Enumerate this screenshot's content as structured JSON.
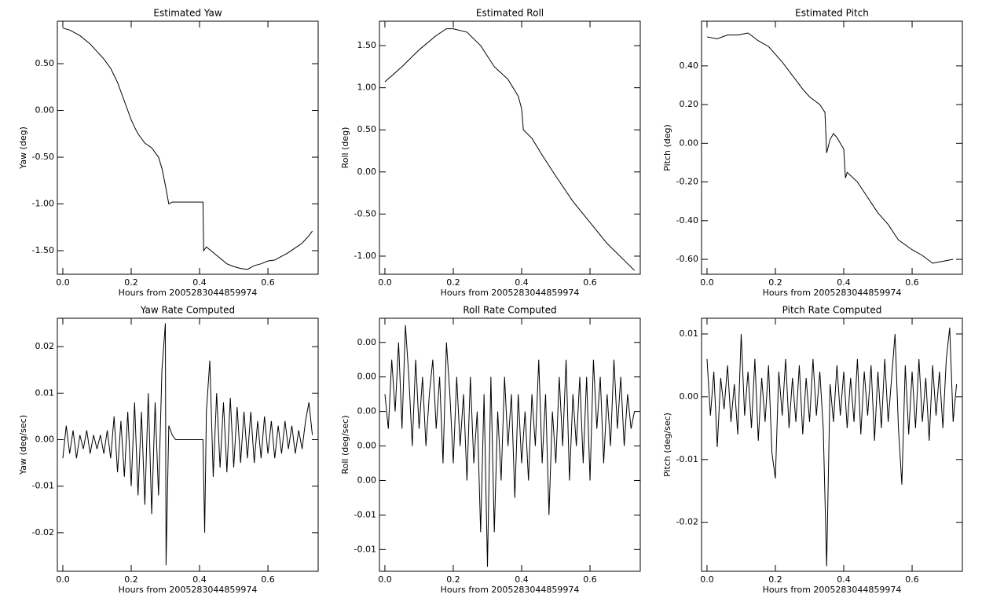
{
  "chart_data": [
    {
      "type": "line",
      "title": "Estimated Yaw",
      "xlabel": "Hours from 2005283044859974",
      "ylabel": "Yaw (deg)",
      "color": "#000000",
      "xlim": [
        -0.016,
        0.747
      ],
      "ylim": [
        -1.752,
        0.954
      ],
      "xticks": [
        {
          "value": 0,
          "label": "0.0"
        },
        0.2,
        0.4,
        0.6
      ],
      "yticks": [
        {
          "value": 0.5,
          "label": "0.50"
        },
        {
          "value": 0,
          "label": "0.00"
        },
        {
          "value": -0.5,
          "label": "-0.50"
        },
        {
          "value": -1,
          "label": "-1.00"
        },
        {
          "value": -1.5,
          "label": "-1.50"
        }
      ],
      "x": [
        0,
        0.02,
        0.05,
        0.08,
        0.1,
        0.12,
        0.14,
        0.16,
        0.18,
        0.2,
        0.21,
        0.22,
        0.24,
        0.26,
        0.28,
        0.29,
        0.3,
        0.31,
        0.32,
        0.41,
        0.412,
        0.42,
        0.44,
        0.46,
        0.48,
        0.5,
        0.52,
        0.54,
        0.56,
        0.58,
        0.6,
        0.62,
        0.64,
        0.66,
        0.68,
        0.7,
        0.72,
        0.73
      ],
      "values": [
        0.88,
        0.86,
        0.8,
        0.71,
        0.63,
        0.55,
        0.45,
        0.3,
        0.1,
        -0.1,
        -0.18,
        -0.25,
        -0.35,
        -0.4,
        -0.5,
        -0.62,
        -0.8,
        -1.0,
        -0.98,
        -0.98,
        -1.5,
        -1.46,
        -1.52,
        -1.58,
        -1.64,
        -1.67,
        -1.69,
        -1.7,
        -1.66,
        -1.64,
        -1.61,
        -1.6,
        -1.56,
        -1.52,
        -1.47,
        -1.42,
        -1.34,
        -1.29
      ]
    },
    {
      "type": "line",
      "title": "Estimated Roll",
      "xlabel": "Hours from 2005283044859974",
      "ylabel": "Roll (deg)",
      "color": "#000000",
      "xlim": [
        -0.016,
        0.747
      ],
      "ylim": [
        -1.215,
        1.79
      ],
      "xticks": [
        {
          "value": 0,
          "label": "0.0"
        },
        0.2,
        0.4,
        0.6
      ],
      "yticks": [
        {
          "value": 1.5,
          "label": "1.50"
        },
        {
          "value": 1,
          "label": "1.00"
        },
        {
          "value": 0.5,
          "label": "0.50"
        },
        {
          "value": 0,
          "label": "0.00"
        },
        {
          "value": -0.5,
          "label": "-0.50"
        },
        {
          "value": -1,
          "label": "-1.00"
        }
      ],
      "x": [
        0,
        0.05,
        0.1,
        0.15,
        0.18,
        0.2,
        0.24,
        0.28,
        0.32,
        0.36,
        0.39,
        0.4,
        0.405,
        0.43,
        0.46,
        0.5,
        0.55,
        0.6,
        0.65,
        0.7,
        0.73
      ],
      "values": [
        1.07,
        1.25,
        1.45,
        1.62,
        1.7,
        1.7,
        1.66,
        1.5,
        1.25,
        1.1,
        0.9,
        0.75,
        0.5,
        0.4,
        0.2,
        -0.05,
        -0.35,
        -0.6,
        -0.85,
        -1.05,
        -1.17
      ]
    },
    {
      "type": "line",
      "title": "Estimated Pitch",
      "xlabel": "Hours from 2005283044859974",
      "ylabel": "Pitch (deg)",
      "color": "#000000",
      "xlim": [
        -0.016,
        0.747
      ],
      "ylim": [
        -0.677,
        0.631
      ],
      "xticks": [
        {
          "value": 0,
          "label": "0.0"
        },
        0.2,
        0.4,
        0.6
      ],
      "yticks": [
        {
          "value": 0.4,
          "label": "0.40"
        },
        {
          "value": 0.2,
          "label": "0.20"
        },
        {
          "value": 0,
          "label": "0.00"
        },
        {
          "value": -0.2,
          "label": "-0.20"
        },
        {
          "value": -0.4,
          "label": "-0.40"
        },
        {
          "value": -0.6,
          "label": "-0.60"
        }
      ],
      "x": [
        0,
        0.03,
        0.06,
        0.09,
        0.12,
        0.15,
        0.18,
        0.2,
        0.22,
        0.25,
        0.28,
        0.3,
        0.33,
        0.345,
        0.35,
        0.36,
        0.37,
        0.38,
        0.39,
        0.4,
        0.405,
        0.41,
        0.44,
        0.47,
        0.5,
        0.53,
        0.56,
        0.6,
        0.63,
        0.66,
        0.69,
        0.72
      ],
      "values": [
        0.55,
        0.54,
        0.56,
        0.56,
        0.57,
        0.53,
        0.5,
        0.46,
        0.42,
        0.35,
        0.28,
        0.24,
        0.2,
        0.16,
        -0.05,
        0.02,
        0.05,
        0.03,
        0.0,
        -0.03,
        -0.18,
        -0.15,
        -0.2,
        -0.28,
        -0.36,
        -0.42,
        -0.5,
        -0.55,
        -0.58,
        -0.62,
        -0.61,
        -0.6
      ]
    },
    {
      "type": "line",
      "title": "Yaw Rate Computed",
      "xlabel": "Hours from 2005283044859974",
      "ylabel": "Yaw (deg/sec)",
      "color": "#000000",
      "xlim": [
        -0.016,
        0.747
      ],
      "ylim": [
        -0.0283,
        0.0261
      ],
      "xticks": [
        {
          "value": 0,
          "label": "0.0"
        },
        0.2,
        0.4,
        0.6
      ],
      "yticks": [
        0.02,
        0.01,
        {
          "value": 0,
          "label": "0.00"
        },
        -0.01,
        -0.02
      ],
      "x": [
        0,
        0.01,
        0.02,
        0.03,
        0.04,
        0.05,
        0.06,
        0.07,
        0.08,
        0.09,
        0.1,
        0.11,
        0.12,
        0.13,
        0.14,
        0.15,
        0.16,
        0.17,
        0.18,
        0.19,
        0.2,
        0.21,
        0.22,
        0.23,
        0.24,
        0.25,
        0.26,
        0.27,
        0.28,
        0.29,
        0.3,
        0.302,
        0.31,
        0.32,
        0.33,
        0.41,
        0.415,
        0.42,
        0.43,
        0.44,
        0.45,
        0.46,
        0.47,
        0.48,
        0.49,
        0.5,
        0.51,
        0.52,
        0.53,
        0.54,
        0.55,
        0.56,
        0.57,
        0.58,
        0.59,
        0.6,
        0.61,
        0.62,
        0.63,
        0.64,
        0.65,
        0.66,
        0.67,
        0.68,
        0.69,
        0.7,
        0.71,
        0.72,
        0.73
      ],
      "values": [
        -0.004,
        0.003,
        -0.003,
        0.002,
        -0.004,
        0.001,
        -0.002,
        0.002,
        -0.003,
        0.001,
        -0.002,
        0.001,
        -0.003,
        0.002,
        -0.004,
        0.005,
        -0.007,
        0.004,
        -0.008,
        0.006,
        -0.01,
        0.008,
        -0.012,
        0.006,
        -0.014,
        0.01,
        -0.016,
        0.008,
        -0.012,
        0.015,
        0.025,
        -0.027,
        0.003,
        0.001,
        0.0,
        0.0,
        -0.02,
        0.006,
        0.017,
        -0.008,
        0.01,
        -0.006,
        0.008,
        -0.007,
        0.009,
        -0.006,
        0.007,
        -0.005,
        0.006,
        -0.004,
        0.006,
        -0.005,
        0.004,
        -0.004,
        0.005,
        -0.003,
        0.004,
        -0.004,
        0.003,
        -0.003,
        0.004,
        -0.002,
        0.003,
        -0.003,
        0.002,
        -0.002,
        0.004,
        0.008,
        0.001
      ]
    },
    {
      "type": "line",
      "title": "Roll Rate Computed",
      "xlabel": "Hours from 2005283044859974",
      "ylabel": "Roll (deg/sec)",
      "color": "#000000",
      "xlim": [
        -0.016,
        0.747
      ],
      "ylim": [
        -0.00926,
        0.0054
      ],
      "xticks": [
        {
          "value": 0,
          "label": "0.0"
        },
        0.2,
        0.4,
        0.6
      ],
      "yticks": [
        {
          "value": 0.004,
          "label": "0.00"
        },
        {
          "value": 0.002,
          "label": "0.00"
        },
        {
          "value": 0,
          "label": "0.00"
        },
        {
          "value": -0.002,
          "label": "0.00"
        },
        {
          "value": -0.004,
          "label": "0.00"
        },
        {
          "value": -0.006,
          "label": "-0.01"
        },
        {
          "value": -0.008,
          "label": "-0.01"
        }
      ],
      "x": [
        0,
        0.01,
        0.02,
        0.03,
        0.04,
        0.05,
        0.06,
        0.07,
        0.08,
        0.09,
        0.1,
        0.11,
        0.12,
        0.13,
        0.14,
        0.15,
        0.16,
        0.17,
        0.18,
        0.19,
        0.2,
        0.21,
        0.22,
        0.23,
        0.24,
        0.25,
        0.26,
        0.27,
        0.28,
        0.29,
        0.3,
        0.31,
        0.32,
        0.33,
        0.34,
        0.35,
        0.36,
        0.37,
        0.38,
        0.39,
        0.4,
        0.41,
        0.42,
        0.43,
        0.44,
        0.45,
        0.46,
        0.47,
        0.48,
        0.49,
        0.5,
        0.51,
        0.52,
        0.53,
        0.54,
        0.55,
        0.56,
        0.57,
        0.58,
        0.59,
        0.6,
        0.61,
        0.62,
        0.63,
        0.64,
        0.65,
        0.66,
        0.67,
        0.68,
        0.69,
        0.7,
        0.71,
        0.72,
        0.73
      ],
      "values": [
        0.001,
        -0.001,
        0.003,
        0.0,
        0.004,
        -0.001,
        0.005,
        0.002,
        -0.002,
        0.003,
        -0.001,
        0.002,
        -0.002,
        0.001,
        0.003,
        -0.001,
        0.002,
        -0.003,
        0.004,
        0.001,
        -0.003,
        0.002,
        -0.002,
        0.001,
        -0.004,
        0.002,
        -0.003,
        0.0,
        -0.007,
        0.001,
        -0.009,
        0.002,
        -0.007,
        0.0,
        -0.004,
        0.002,
        -0.002,
        0.001,
        -0.005,
        0.001,
        -0.003,
        0.0,
        -0.004,
        0.001,
        -0.002,
        0.003,
        -0.003,
        0.001,
        -0.006,
        0.0,
        -0.003,
        0.002,
        -0.002,
        0.003,
        -0.004,
        0.001,
        -0.002,
        0.002,
        -0.003,
        0.002,
        -0.004,
        0.003,
        -0.001,
        0.002,
        -0.003,
        0.001,
        -0.002,
        0.003,
        -0.001,
        0.002,
        -0.002,
        0.001,
        -0.001,
        0.0
      ]
    },
    {
      "type": "line",
      "title": "Pitch Rate Computed",
      "xlabel": "Hours from 2005283044859974",
      "ylabel": "Pitch (deg/sec)",
      "color": "#000000",
      "xlim": [
        -0.016,
        0.747
      ],
      "ylim": [
        -0.0278,
        0.0125
      ],
      "xticks": [
        {
          "value": 0,
          "label": "0.0"
        },
        0.2,
        0.4,
        0.6
      ],
      "yticks": [
        0.01,
        {
          "value": 0,
          "label": "0.00"
        },
        -0.01,
        -0.02
      ],
      "x": [
        0,
        0.01,
        0.02,
        0.03,
        0.04,
        0.05,
        0.06,
        0.07,
        0.08,
        0.09,
        0.1,
        0.11,
        0.12,
        0.13,
        0.14,
        0.15,
        0.16,
        0.17,
        0.18,
        0.19,
        0.2,
        0.21,
        0.22,
        0.23,
        0.24,
        0.25,
        0.26,
        0.27,
        0.28,
        0.29,
        0.3,
        0.31,
        0.32,
        0.33,
        0.34,
        0.35,
        0.36,
        0.37,
        0.38,
        0.39,
        0.4,
        0.41,
        0.42,
        0.43,
        0.44,
        0.45,
        0.46,
        0.47,
        0.48,
        0.49,
        0.5,
        0.51,
        0.52,
        0.53,
        0.54,
        0.55,
        0.56,
        0.57,
        0.58,
        0.59,
        0.6,
        0.61,
        0.62,
        0.63,
        0.64,
        0.65,
        0.66,
        0.67,
        0.68,
        0.69,
        0.7,
        0.71,
        0.72,
        0.73
      ],
      "values": [
        0.006,
        -0.003,
        0.004,
        -0.008,
        0.003,
        -0.002,
        0.005,
        -0.004,
        0.002,
        -0.006,
        0.01,
        -0.003,
        0.004,
        -0.005,
        0.006,
        -0.007,
        0.003,
        -0.004,
        0.005,
        -0.009,
        -0.013,
        0.004,
        -0.003,
        0.006,
        -0.005,
        0.003,
        -0.004,
        0.005,
        -0.006,
        0.003,
        -0.004,
        0.006,
        -0.003,
        0.004,
        -0.005,
        -0.027,
        0.002,
        -0.004,
        0.005,
        -0.003,
        0.004,
        -0.005,
        0.003,
        -0.004,
        0.006,
        -0.006,
        0.004,
        -0.003,
        0.005,
        -0.007,
        0.004,
        -0.005,
        0.006,
        -0.004,
        0.003,
        0.01,
        -0.005,
        -0.014,
        0.005,
        -0.006,
        0.004,
        -0.005,
        0.006,
        -0.004,
        0.003,
        -0.007,
        0.005,
        -0.003,
        0.004,
        -0.005,
        0.006,
        0.011,
        -0.004,
        0.002
      ]
    }
  ]
}
